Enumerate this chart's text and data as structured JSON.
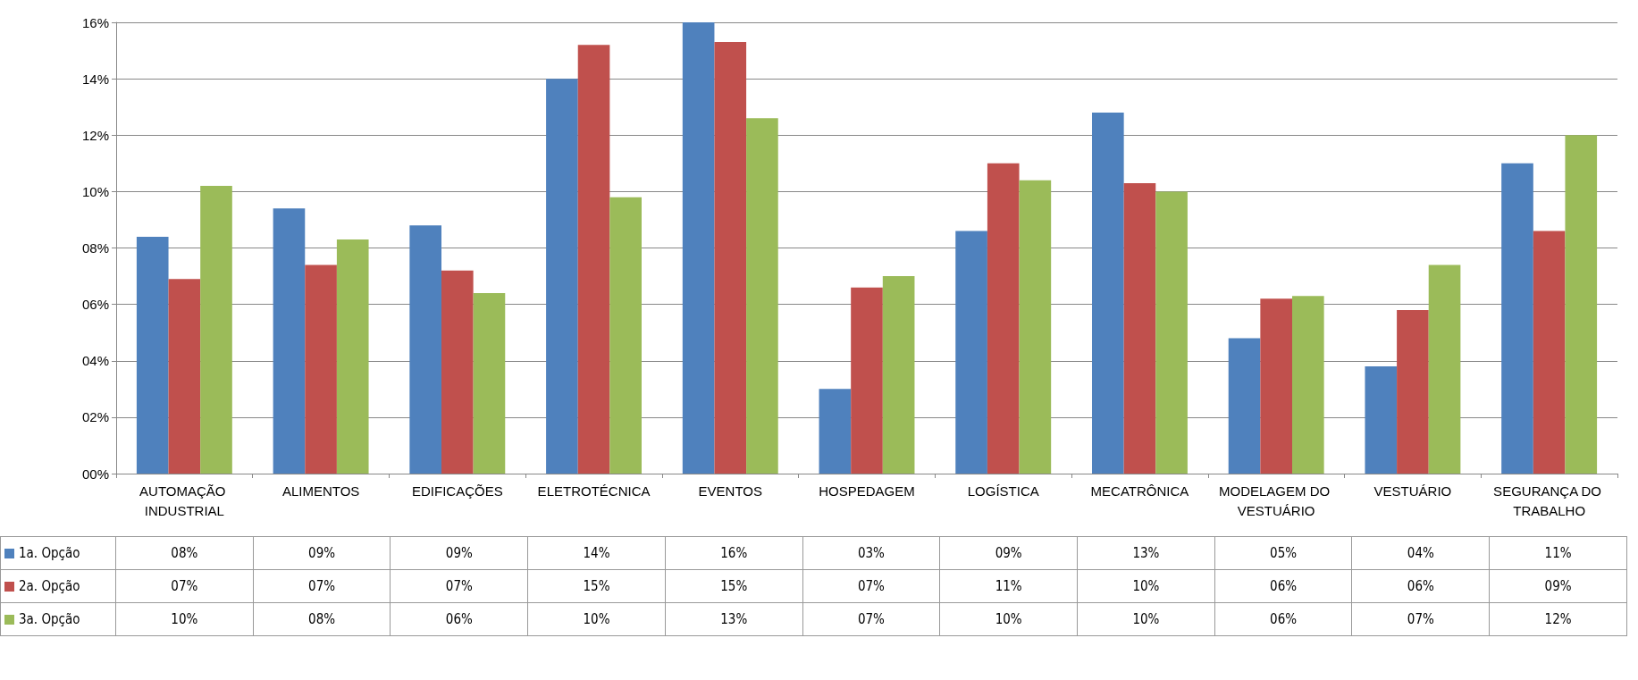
{
  "chart_data": {
    "type": "bar",
    "categories": [
      "AUTOMAÇÃO INDUSTRIAL",
      "ALIMENTOS",
      "EDIFICAÇÕES",
      "ELETROTÉCNICA",
      "EVENTOS",
      "HOSPEDAGEM",
      "LOGÍSTICA",
      "MECATRÔNICA",
      "MODELAGEM DO VESTUÁRIO",
      "VESTUÁRIO",
      "SEGURANÇA DO TRABALHO"
    ],
    "series": [
      {
        "name": "1a. Opção",
        "color": "#4f81bd",
        "values": [
          8.4,
          9.4,
          8.8,
          14.0,
          16.0,
          3.0,
          8.6,
          12.8,
          4.8,
          3.8,
          11.0
        ],
        "value_labels": [
          "08%",
          "09%",
          "09%",
          "14%",
          "16%",
          "03%",
          "09%",
          "13%",
          "05%",
          "04%",
          "11%"
        ]
      },
      {
        "name": "2a. Opção",
        "color": "#c0504d",
        "values": [
          6.9,
          7.4,
          7.2,
          15.2,
          15.3,
          6.6,
          11.0,
          10.3,
          6.2,
          5.8,
          8.6
        ],
        "value_labels": [
          "07%",
          "07%",
          "07%",
          "15%",
          "15%",
          "07%",
          "11%",
          "10%",
          "06%",
          "06%",
          "09%"
        ]
      },
      {
        "name": "3a. Opção",
        "color": "#9bbb59",
        "values": [
          10.2,
          8.3,
          6.4,
          9.8,
          12.6,
          7.0,
          10.4,
          10.0,
          6.3,
          7.4,
          12.0
        ],
        "value_labels": [
          "10%",
          "08%",
          "06%",
          "10%",
          "13%",
          "07%",
          "10%",
          "10%",
          "06%",
          "07%",
          "12%"
        ]
      }
    ],
    "ylim": [
      0,
      16
    ],
    "yticks": [
      {
        "value": 0,
        "label": "00%"
      },
      {
        "value": 2,
        "label": "02%"
      },
      {
        "value": 4,
        "label": "04%"
      },
      {
        "value": 6,
        "label": "06%"
      },
      {
        "value": 8,
        "label": "08%"
      },
      {
        "value": 10,
        "label": "10%"
      },
      {
        "value": 12,
        "label": "12%"
      },
      {
        "value": 14,
        "label": "14%"
      },
      {
        "value": 16,
        "label": "16%"
      }
    ],
    "grid": "y",
    "legend": "bottom"
  }
}
